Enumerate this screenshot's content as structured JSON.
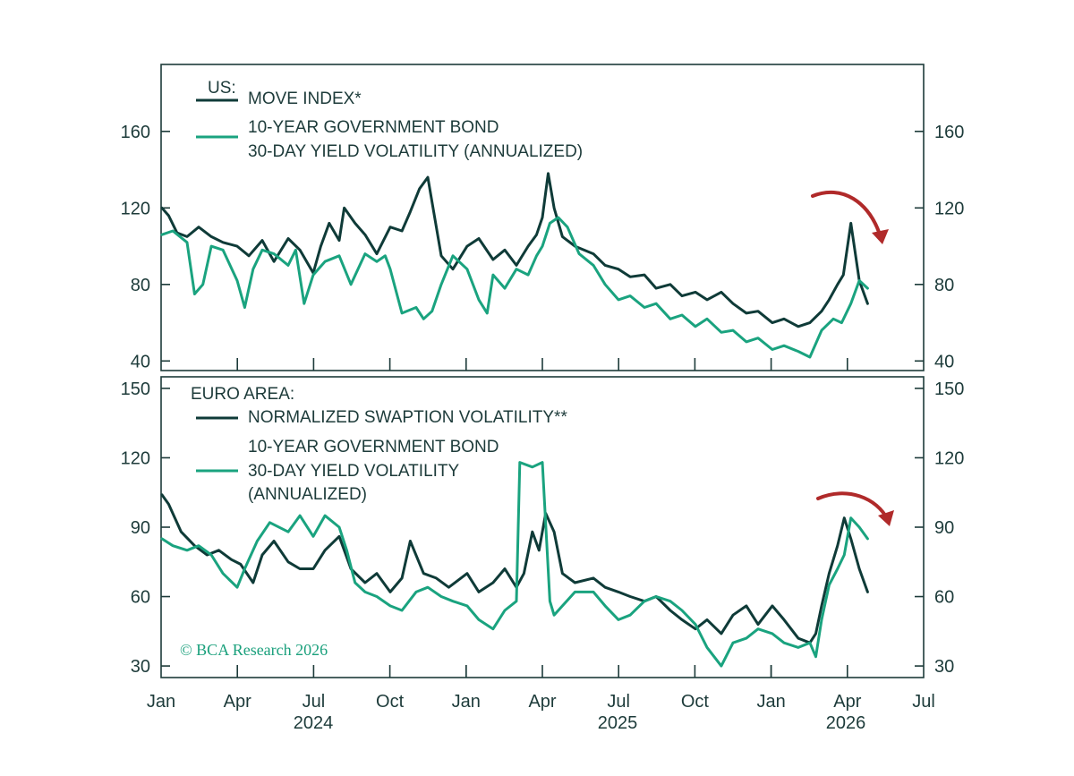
{
  "colors": {
    "dark": "#0f3b38",
    "green": "#1aa37f",
    "frame": "#1d3b3a",
    "arrow": "#b02a2a"
  },
  "copyright": "© BCA Research 2026",
  "x_axis": {
    "tick_labels": [
      "Jan",
      "Apr",
      "Jul",
      "Oct",
      "Jan",
      "Apr",
      "Jul",
      "Oct",
      "Jan",
      "Apr",
      "Jul"
    ],
    "year_labels": [
      "2024",
      "2025",
      "2026"
    ]
  },
  "chart_data": [
    {
      "type": "line",
      "panel": "US",
      "title": "US:",
      "xlim": [
        "2024-01",
        "2026-07"
      ],
      "ylim": [
        35,
        195
      ],
      "yticks": [
        40,
        80,
        120,
        160
      ],
      "grid": false,
      "legend_position": "top-left",
      "series": [
        {
          "name": "MOVE INDEX*",
          "color": "#0f3b38",
          "x": [
            "2024-01-02",
            "2024-01-10",
            "2024-01-20",
            "2024-02-01",
            "2024-02-15",
            "2024-03-01",
            "2024-03-15",
            "2024-04-01",
            "2024-04-15",
            "2024-05-01",
            "2024-05-15",
            "2024-06-01",
            "2024-06-15",
            "2024-07-01",
            "2024-07-10",
            "2024-07-20",
            "2024-08-01",
            "2024-08-07",
            "2024-08-20",
            "2024-09-01",
            "2024-09-15",
            "2024-10-01",
            "2024-10-15",
            "2024-10-25",
            "2024-11-05",
            "2024-11-15",
            "2024-12-01",
            "2024-12-15",
            "2025-01-01",
            "2025-01-15",
            "2025-02-01",
            "2025-02-15",
            "2025-03-01",
            "2025-03-15",
            "2025-03-25",
            "2025-04-01",
            "2025-04-08",
            "2025-04-15",
            "2025-04-25",
            "2025-05-10",
            "2025-06-01",
            "2025-06-15",
            "2025-07-01",
            "2025-07-15",
            "2025-08-01",
            "2025-08-15",
            "2025-09-01",
            "2025-09-15",
            "2025-10-01",
            "2025-10-15",
            "2025-11-01",
            "2025-11-15",
            "2025-12-01",
            "2025-12-15",
            "2026-01-01",
            "2026-01-15",
            "2026-02-01",
            "2026-02-15",
            "2026-03-01",
            "2026-03-10",
            "2026-03-20",
            "2026-03-27",
            "2026-04-05",
            "2026-04-15",
            "2026-04-25"
          ],
          "y": [
            120,
            116,
            107,
            105,
            110,
            105,
            102,
            100,
            95,
            103,
            92,
            104,
            98,
            86,
            100,
            112,
            103,
            120,
            112,
            106,
            96,
            110,
            108,
            118,
            130,
            136,
            95,
            88,
            100,
            104,
            93,
            98,
            90,
            100,
            106,
            115,
            138,
            120,
            105,
            100,
            96,
            90,
            88,
            84,
            85,
            78,
            80,
            74,
            76,
            72,
            76,
            70,
            65,
            66,
            60,
            62,
            58,
            60,
            66,
            72,
            80,
            85,
            112,
            82,
            70
          ]
        },
        {
          "name": "10-YEAR GOVERNMENT BOND 30-DAY YIELD VOLATILITY (ANNUALIZED)",
          "color": "#1aa37f",
          "x": [
            "2024-01-02",
            "2024-01-15",
            "2024-02-01",
            "2024-02-10",
            "2024-02-20",
            "2024-03-01",
            "2024-03-15",
            "2024-04-01",
            "2024-04-10",
            "2024-04-20",
            "2024-05-01",
            "2024-05-15",
            "2024-06-01",
            "2024-06-10",
            "2024-06-20",
            "2024-07-01",
            "2024-07-15",
            "2024-08-01",
            "2024-08-15",
            "2024-09-01",
            "2024-09-15",
            "2024-09-25",
            "2024-10-01",
            "2024-10-15",
            "2024-11-01",
            "2024-11-10",
            "2024-11-20",
            "2024-12-01",
            "2024-12-15",
            "2025-01-01",
            "2025-01-15",
            "2025-01-25",
            "2025-02-01",
            "2025-02-15",
            "2025-03-01",
            "2025-03-15",
            "2025-03-25",
            "2025-04-01",
            "2025-04-10",
            "2025-04-20",
            "2025-05-01",
            "2025-05-15",
            "2025-06-01",
            "2025-06-15",
            "2025-07-01",
            "2025-07-15",
            "2025-08-01",
            "2025-08-15",
            "2025-09-01",
            "2025-09-15",
            "2025-10-01",
            "2025-10-15",
            "2025-11-01",
            "2025-11-15",
            "2025-12-01",
            "2025-12-15",
            "2026-01-01",
            "2026-01-15",
            "2026-02-01",
            "2026-02-15",
            "2026-03-01",
            "2026-03-15",
            "2026-03-25",
            "2026-04-05",
            "2026-04-15",
            "2026-04-25"
          ],
          "y": [
            106,
            108,
            102,
            75,
            80,
            100,
            98,
            82,
            68,
            88,
            98,
            96,
            90,
            98,
            70,
            85,
            92,
            95,
            80,
            96,
            92,
            95,
            88,
            65,
            68,
            62,
            66,
            80,
            95,
            88,
            72,
            65,
            85,
            78,
            88,
            85,
            95,
            100,
            112,
            115,
            110,
            96,
            90,
            80,
            72,
            74,
            68,
            70,
            62,
            64,
            58,
            62,
            55,
            56,
            50,
            52,
            46,
            48,
            45,
            42,
            56,
            62,
            60,
            70,
            82,
            78
          ]
        }
      ]
    },
    {
      "type": "line",
      "panel": "EURO AREA",
      "title": "EURO AREA:",
      "xlim": [
        "2024-01",
        "2026-07"
      ],
      "ylim": [
        25,
        155
      ],
      "yticks": [
        30,
        60,
        90,
        120,
        150
      ],
      "grid": false,
      "legend_position": "top-left",
      "series": [
        {
          "name": "NORMALIZED SWAPTION VOLATILITY**",
          "color": "#0f3b38",
          "x": [
            "2024-01-02",
            "2024-01-10",
            "2024-01-25",
            "2024-02-10",
            "2024-02-25",
            "2024-03-10",
            "2024-03-25",
            "2024-04-05",
            "2024-04-20",
            "2024-05-01",
            "2024-05-15",
            "2024-06-01",
            "2024-06-15",
            "2024-07-01",
            "2024-07-15",
            "2024-08-01",
            "2024-08-15",
            "2024-09-01",
            "2024-09-15",
            "2024-10-01",
            "2024-10-15",
            "2024-10-25",
            "2024-11-10",
            "2024-11-25",
            "2024-12-10",
            "2025-01-01",
            "2025-01-15",
            "2025-02-01",
            "2025-02-15",
            "2025-03-01",
            "2025-03-10",
            "2025-03-20",
            "2025-03-28",
            "2025-04-05",
            "2025-04-15",
            "2025-04-25",
            "2025-05-10",
            "2025-06-01",
            "2025-06-15",
            "2025-07-01",
            "2025-07-15",
            "2025-08-01",
            "2025-08-15",
            "2025-09-01",
            "2025-09-15",
            "2025-10-01",
            "2025-10-15",
            "2025-11-01",
            "2025-11-15",
            "2025-12-01",
            "2025-12-15",
            "2026-01-01",
            "2026-01-15",
            "2026-02-01",
            "2026-02-15",
            "2026-02-22",
            "2026-03-01",
            "2026-03-10",
            "2026-03-20",
            "2026-03-28",
            "2026-04-05",
            "2026-04-15",
            "2026-04-25"
          ],
          "y": [
            104,
            100,
            88,
            82,
            78,
            80,
            76,
            74,
            66,
            78,
            84,
            75,
            72,
            72,
            80,
            86,
            72,
            66,
            70,
            62,
            68,
            84,
            70,
            68,
            64,
            70,
            62,
            66,
            72,
            64,
            70,
            88,
            80,
            96,
            88,
            70,
            66,
            68,
            64,
            62,
            60,
            58,
            60,
            54,
            50,
            46,
            50,
            44,
            52,
            56,
            48,
            56,
            50,
            42,
            40,
            44,
            56,
            70,
            82,
            94,
            85,
            72,
            62
          ]
        },
        {
          "name": "10-YEAR GOVERNMENT BOND 30-DAY YIELD VOLATILITY (ANNUALIZED)",
          "color": "#1aa37f",
          "x": [
            "2024-01-02",
            "2024-01-15",
            "2024-02-01",
            "2024-02-15",
            "2024-03-01",
            "2024-03-15",
            "2024-04-01",
            "2024-04-10",
            "2024-04-25",
            "2024-05-10",
            "2024-06-01",
            "2024-06-15",
            "2024-07-01",
            "2024-07-15",
            "2024-08-01",
            "2024-08-10",
            "2024-08-20",
            "2024-09-01",
            "2024-09-15",
            "2024-10-01",
            "2024-10-15",
            "2024-11-01",
            "2024-11-15",
            "2024-12-01",
            "2024-12-15",
            "2025-01-01",
            "2025-01-15",
            "2025-02-01",
            "2025-02-15",
            "2025-03-01",
            "2025-03-05",
            "2025-03-20",
            "2025-04-01",
            "2025-04-10",
            "2025-04-15",
            "2025-04-25",
            "2025-05-10",
            "2025-06-01",
            "2025-06-15",
            "2025-07-01",
            "2025-07-15",
            "2025-08-01",
            "2025-08-15",
            "2025-09-01",
            "2025-09-15",
            "2025-10-01",
            "2025-10-15",
            "2025-11-01",
            "2025-11-15",
            "2025-12-01",
            "2025-12-15",
            "2026-01-01",
            "2026-01-15",
            "2026-02-01",
            "2026-02-15",
            "2026-02-22",
            "2026-03-01",
            "2026-03-10",
            "2026-03-20",
            "2026-03-28",
            "2026-04-05",
            "2026-04-15",
            "2026-04-25"
          ],
          "y": [
            85,
            82,
            80,
            82,
            78,
            70,
            64,
            72,
            84,
            92,
            88,
            95,
            86,
            95,
            90,
            80,
            66,
            62,
            60,
            56,
            54,
            62,
            64,
            60,
            58,
            56,
            50,
            46,
            54,
            58,
            118,
            116,
            118,
            58,
            52,
            56,
            62,
            62,
            56,
            50,
            52,
            58,
            60,
            58,
            54,
            48,
            38,
            30,
            40,
            42,
            46,
            44,
            40,
            38,
            40,
            34,
            50,
            65,
            72,
            78,
            94,
            90,
            85
          ]
        }
      ]
    }
  ]
}
